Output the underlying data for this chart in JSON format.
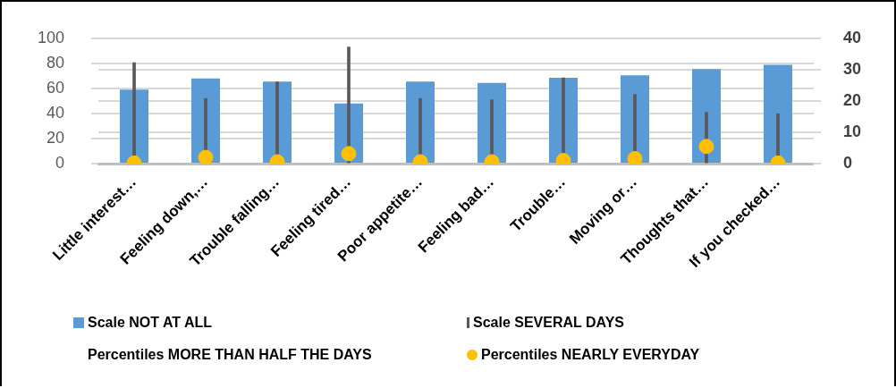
{
  "chart_data": {
    "type": "bar",
    "categories": [
      "Little interest…",
      "Feeling down,…",
      "Trouble falling…",
      "Feeling tired…",
      "Poor appetite…",
      "Feeling bad…",
      "Trouble…",
      "Moving or…",
      "Thoughts that…",
      "If you checked…"
    ],
    "series": [
      {
        "name": "Scale NOT AT ALL",
        "color": "#5b9bd5",
        "values": [
          59,
          68,
          65.5,
          48,
          65.5,
          64.3,
          68.5,
          70.4,
          75.5,
          78.8
        ]
      },
      {
        "name": "Scale SEVERAL DAYS",
        "type": "bar",
        "axis": "y2",
        "color": "#595959",
        "values": [
          32.2,
          20.8,
          26.1,
          37.2,
          20.8,
          20.4,
          27.4,
          22.1,
          16.4,
          15.9
        ]
      },
      {
        "name": "Percentiles MORE THAN HALF THE DAYS",
        "type": "line",
        "axis": "y2",
        "values": [
          null,
          null,
          null,
          null,
          null,
          null,
          null,
          null,
          null,
          null
        ]
      },
      {
        "name": "Percentiles NEARLY EVERYDAY",
        "type": "scatter",
        "axis": "y2",
        "color": "#ffc000",
        "marker": "circle",
        "values": [
          0.2,
          2,
          0.6,
          3.2,
          0.6,
          0.6,
          1,
          1.6,
          5.5,
          0.2
        ]
      }
    ],
    "ylim": [
      0,
      100
    ],
    "yticks": [
      0,
      20,
      40,
      60,
      80,
      100
    ],
    "y2lim": [
      0,
      40
    ],
    "y2ticks": [
      0,
      10,
      20,
      30,
      40
    ],
    "grid": "y",
    "legend": "bottom"
  }
}
